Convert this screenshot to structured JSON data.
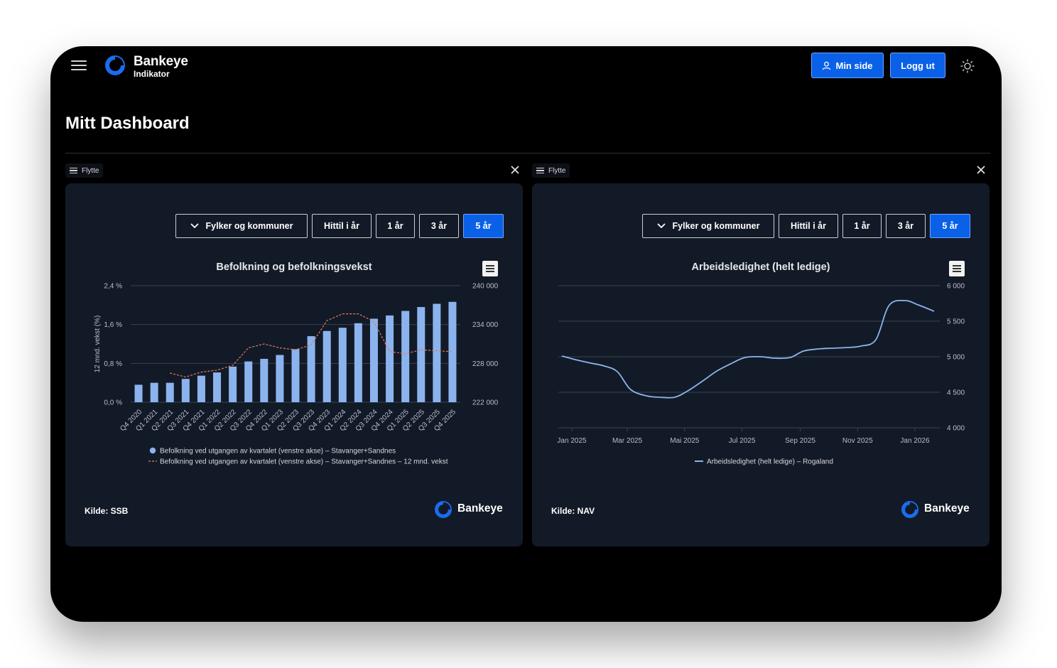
{
  "header": {
    "brand_name": "Bankeye",
    "brand_sub": "Indikator",
    "min_side_label": "Min side",
    "logout_label": "Logg ut"
  },
  "page": {
    "title": "Mitt Dashboard"
  },
  "colors": {
    "accent": "#0a61e8",
    "bar": "#8bb4ee",
    "line": "#e07a5f",
    "card_bg": "#131a27"
  },
  "widgets": [
    {
      "move_label": "Flytte",
      "filters": [
        {
          "label": "Fylker og kommuner",
          "active": false
        },
        {
          "label": "Hittil i år",
          "active": false
        },
        {
          "label": "1 år",
          "active": false
        },
        {
          "label": "3 år",
          "active": false
        },
        {
          "label": "5 år",
          "active": true
        }
      ],
      "source": "Kilde: SSB",
      "logo_text": "Bankeye"
    },
    {
      "move_label": "Flytte",
      "filters": [
        {
          "label": "Fylker og kommuner",
          "active": false
        },
        {
          "label": "Hittil i år",
          "active": false
        },
        {
          "label": "1 år",
          "active": false
        },
        {
          "label": "3 år",
          "active": false
        },
        {
          "label": "5 år",
          "active": true
        }
      ],
      "source": "Kilde: NAV",
      "logo_text": "Bankeye"
    }
  ],
  "chart_data": [
    {
      "type": "bar",
      "title": "Befolkning og befolkningsvekst",
      "categories": [
        "Q4 2020",
        "Q1 2021",
        "Q2 2021",
        "Q3 2021",
        "Q4 2021",
        "Q1 2022",
        "Q2 2022",
        "Q3 2022",
        "Q4 2022",
        "Q1 2023",
        "Q2 2023",
        "Q3 2023",
        "Q4 2023",
        "Q1 2024",
        "Q2 2024",
        "Q3 2024",
        "Q4 2024",
        "Q1 2025",
        "Q2 2025",
        "Q3 2025",
        "Q4 2025"
      ],
      "y_left_label": "12 mnd. vekst (%)",
      "y_left_ticks": [
        "2,4 %",
        "1,6 %",
        "0,8 %",
        "0,0 %"
      ],
      "y_left_range": [
        0,
        2.4
      ],
      "y_right_ticks": [
        "240 000",
        "234 000",
        "228 000",
        "222 000"
      ],
      "y_right_range": [
        222000,
        240000
      ],
      "series": [
        {
          "name": "Befolkning ved utgangen av kvartalet (venstre akse) – Stavanger+Sandnes",
          "kind": "bar",
          "axis": "right",
          "values": [
            224700,
            225000,
            225000,
            225600,
            226100,
            226600,
            227500,
            228300,
            228700,
            229300,
            230200,
            232200,
            233000,
            233500,
            234200,
            234900,
            235400,
            236100,
            236700,
            237200,
            237500
          ]
        },
        {
          "name": "Befolkning ved utgangen av kvartalet (venstre akse) – Stavanger+Sandnes – 12 mnd. vekst",
          "kind": "line",
          "axis": "left",
          "values": [
            null,
            null,
            0.6,
            0.52,
            0.62,
            0.66,
            0.76,
            1.12,
            1.2,
            1.12,
            1.08,
            1.18,
            1.68,
            1.82,
            1.82,
            1.66,
            1.04,
            1.0,
            1.08,
            1.06,
            1.04
          ]
        }
      ],
      "legend": "bottom"
    },
    {
      "type": "line",
      "title": "Arbeidsledighet (helt ledige)",
      "x_ticks": [
        "Jan 2025",
        "Mar 2025",
        "Mai 2025",
        "Jul 2025",
        "Sep 2025",
        "Nov 2025",
        "Jan 2026"
      ],
      "y_ticks": [
        "6 000",
        "5 500",
        "5 000",
        "4 500",
        "4 000"
      ],
      "y_range": [
        4000,
        6000
      ],
      "x": [
        "2025-01-01",
        "2025-01-15",
        "2025-02-01",
        "2025-02-15",
        "2025-03-01",
        "2025-03-15",
        "2025-04-01",
        "2025-04-15",
        "2025-05-01",
        "2025-05-15",
        "2025-06-01",
        "2025-06-15",
        "2025-07-01",
        "2025-07-15",
        "2025-08-01",
        "2025-08-15",
        "2025-09-01",
        "2025-09-15",
        "2025-10-01",
        "2025-10-15",
        "2025-11-01",
        "2025-11-15",
        "2025-12-01",
        "2025-12-15",
        "2026-01-01",
        "2026-01-15",
        "2026-02-01"
      ],
      "series": [
        {
          "name": "Arbeidsledighet (helt ledige) – Rogaland",
          "values": [
            5010,
            4960,
            4910,
            4870,
            4790,
            4540,
            4450,
            4430,
            4430,
            4520,
            4670,
            4800,
            4910,
            4990,
            5000,
            4980,
            4990,
            5080,
            5110,
            5120,
            5130,
            5150,
            5240,
            5720,
            5790,
            5730,
            5640
          ]
        }
      ],
      "legend": "bottom"
    }
  ]
}
